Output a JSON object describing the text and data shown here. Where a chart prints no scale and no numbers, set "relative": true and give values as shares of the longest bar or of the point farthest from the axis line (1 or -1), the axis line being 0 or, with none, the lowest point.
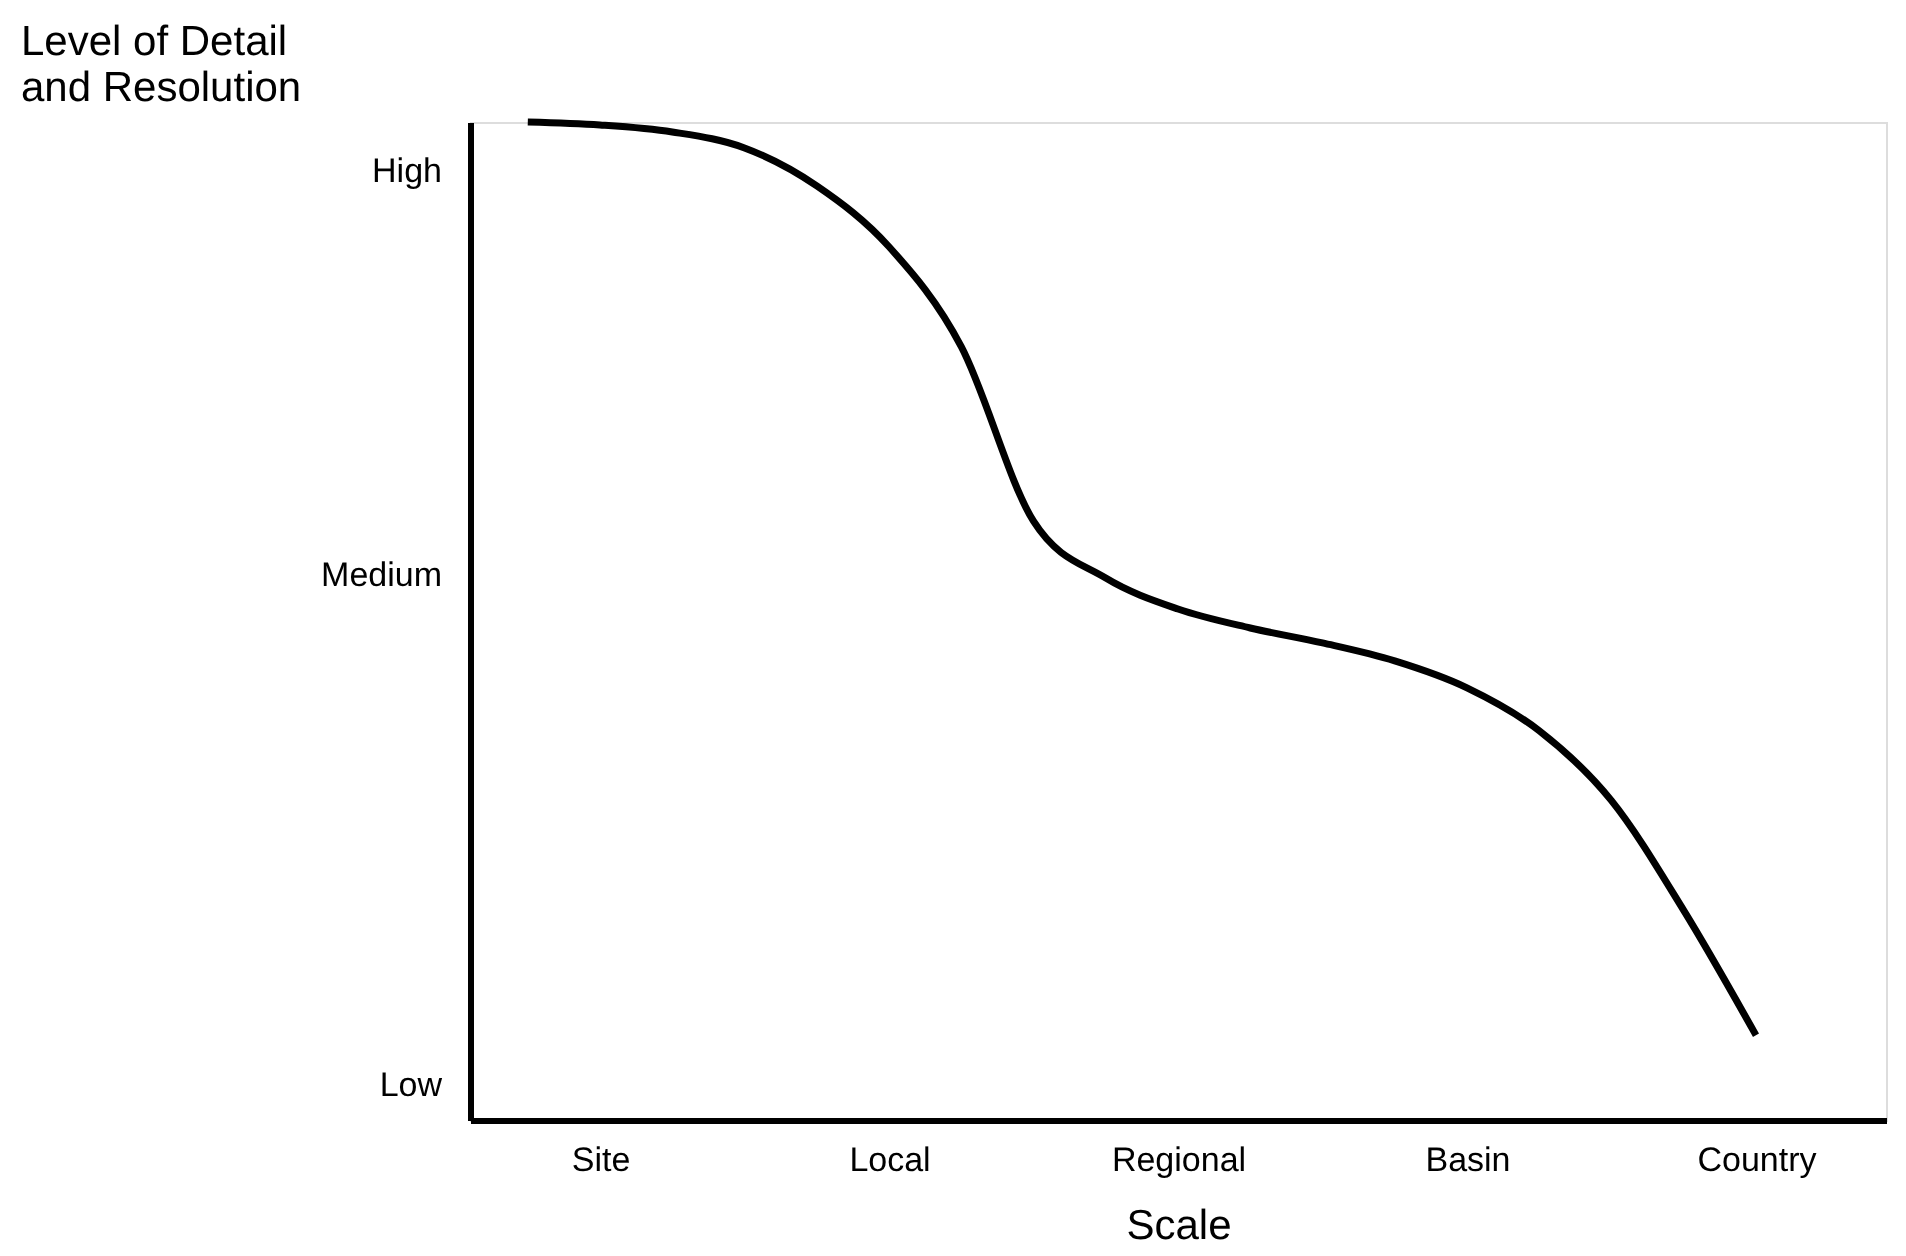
{
  "chart_data": {
    "type": "line",
    "relative": true,
    "ylabel": "Level of Detail\nand Resolution",
    "xlabel": "Scale",
    "color": "#000000",
    "categories": [
      null,
      "Site",
      null,
      null,
      null,
      "Local",
      null,
      null,
      null,
      "Regional",
      null,
      null,
      null,
      "Basin",
      null,
      null,
      null,
      "Country"
    ],
    "values": [
      1.0,
      0.997,
      0.99,
      0.974,
      0.936,
      0.875,
      0.775,
      0.6,
      0.543,
      0.512,
      0.493,
      0.478,
      0.46,
      0.433,
      0.39,
      0.32,
      0.21,
      0.085
    ],
    "annotations": [
      "High",
      "Medium",
      "Low"
    ],
    "grid": false,
    "marker": "none",
    "line_style": "solid"
  }
}
